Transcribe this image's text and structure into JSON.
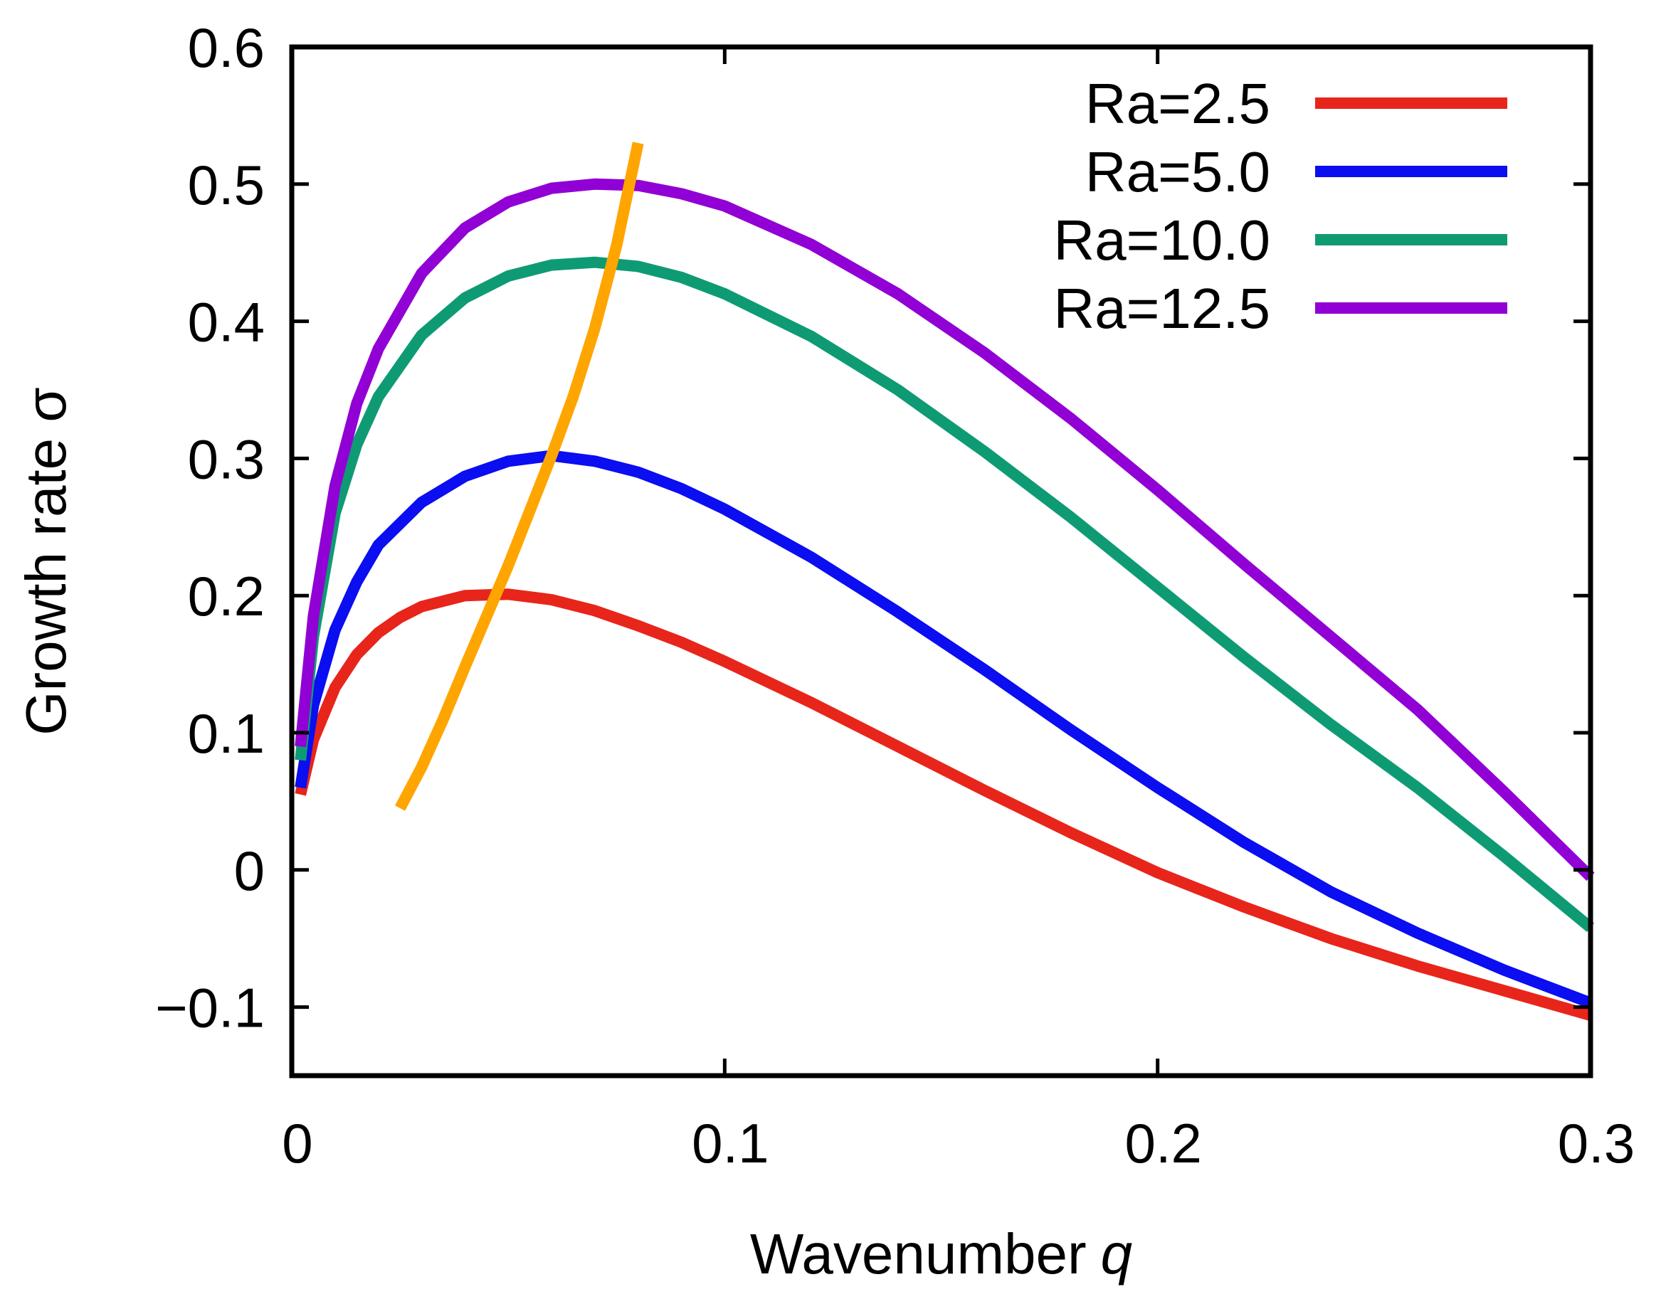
{
  "chart_data": {
    "type": "line",
    "title": "",
    "xlabel": "Wavenumber",
    "xlabel_var": "q",
    "ylabel": "Growth rate σ",
    "xlim": [
      0,
      0.3
    ],
    "ylim": [
      -0.15,
      0.6
    ],
    "xticks": [
      0,
      0.1,
      0.2,
      0.3
    ],
    "xtick_labels": [
      "0",
      "0.1",
      "0.2",
      "0.3"
    ],
    "yticks": [
      -0.1,
      0,
      0.1,
      0.2,
      0.3,
      0.4,
      0.5,
      0.6
    ],
    "ytick_labels": [
      "−0.1",
      "0",
      "0.1",
      "0.2",
      "0.3",
      "0.4",
      "0.5",
      "0.6"
    ],
    "grid": false,
    "legend_position": "top-right",
    "series": [
      {
        "name": "Ra=2.5",
        "color": "#e8251b",
        "x": [
          0.002,
          0.005,
          0.01,
          0.015,
          0.02,
          0.025,
          0.03,
          0.04,
          0.05,
          0.06,
          0.07,
          0.08,
          0.09,
          0.1,
          0.12,
          0.14,
          0.16,
          0.18,
          0.2,
          0.22,
          0.24,
          0.26,
          0.28,
          0.3
        ],
        "y": [
          0.055,
          0.095,
          0.133,
          0.157,
          0.173,
          0.184,
          0.192,
          0.2,
          0.201,
          0.197,
          0.189,
          0.178,
          0.166,
          0.152,
          0.122,
          0.09,
          0.058,
          0.027,
          -0.002,
          -0.027,
          -0.05,
          -0.07,
          -0.088,
          -0.106
        ]
      },
      {
        "name": "Ra=5.0",
        "color": "#0a0ef0",
        "x": [
          0.002,
          0.005,
          0.01,
          0.015,
          0.02,
          0.03,
          0.04,
          0.05,
          0.06,
          0.07,
          0.08,
          0.09,
          0.1,
          0.12,
          0.14,
          0.16,
          0.18,
          0.2,
          0.22,
          0.24,
          0.26,
          0.28,
          0.3
        ],
        "y": [
          0.06,
          0.12,
          0.175,
          0.21,
          0.237,
          0.268,
          0.287,
          0.298,
          0.302,
          0.298,
          0.29,
          0.278,
          0.263,
          0.228,
          0.188,
          0.146,
          0.102,
          0.06,
          0.02,
          -0.016,
          -0.046,
          -0.073,
          -0.097
        ]
      },
      {
        "name": "Ra=10.0",
        "color": "#0e9b74",
        "x": [
          0.002,
          0.005,
          0.01,
          0.015,
          0.02,
          0.03,
          0.04,
          0.05,
          0.06,
          0.07,
          0.08,
          0.09,
          0.1,
          0.12,
          0.14,
          0.16,
          0.18,
          0.2,
          0.22,
          0.24,
          0.26,
          0.28,
          0.3
        ],
        "y": [
          0.08,
          0.17,
          0.26,
          0.31,
          0.345,
          0.39,
          0.417,
          0.433,
          0.441,
          0.443,
          0.44,
          0.432,
          0.42,
          0.389,
          0.35,
          0.305,
          0.257,
          0.206,
          0.155,
          0.106,
          0.06,
          0.01,
          -0.042
        ]
      },
      {
        "name": "Ra=12.5",
        "color": "#9100d4",
        "x": [
          0.002,
          0.005,
          0.01,
          0.015,
          0.02,
          0.03,
          0.04,
          0.05,
          0.06,
          0.07,
          0.08,
          0.09,
          0.1,
          0.12,
          0.14,
          0.16,
          0.18,
          0.2,
          0.22,
          0.24,
          0.26,
          0.28,
          0.3
        ],
        "y": [
          0.09,
          0.185,
          0.28,
          0.34,
          0.38,
          0.435,
          0.468,
          0.487,
          0.497,
          0.5,
          0.499,
          0.493,
          0.484,
          0.456,
          0.42,
          0.377,
          0.329,
          0.277,
          0.223,
          0.17,
          0.117,
          0.057,
          -0.005
        ]
      },
      {
        "name": "",
        "color": "#ffa500",
        "x": [
          0.025,
          0.03,
          0.035,
          0.04,
          0.045,
          0.05,
          0.055,
          0.06,
          0.065,
          0.07,
          0.075,
          0.08
        ],
        "y": [
          0.045,
          0.075,
          0.11,
          0.148,
          0.185,
          0.222,
          0.262,
          0.302,
          0.345,
          0.395,
          0.455,
          0.53
        ]
      }
    ]
  }
}
